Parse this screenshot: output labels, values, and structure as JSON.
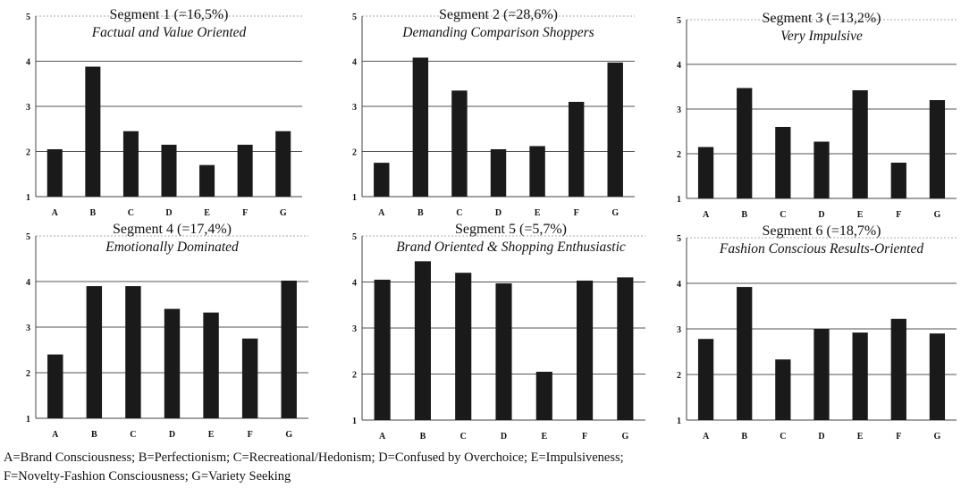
{
  "caption": {
    "line1": "A=Brand Consciousness; B=Perfectionism; C=Recreational/Hedonism; D=Confused by Overchoice; E=Impulsiveness;",
    "line2": "F=Novelty-Fashion Consciousness; G=Variety Seeking"
  },
  "colors": {
    "bar": "#1a1a1a",
    "grid": "#555555",
    "axis": "#444444",
    "text": "#111111"
  },
  "chart_data": [
    {
      "type": "bar",
      "title": "Segment 1 (=16,5%)",
      "subtitle": "Factual and Value Oriented",
      "categories": [
        "A",
        "B",
        "C",
        "D",
        "E",
        "F",
        "G"
      ],
      "values": [
        2.05,
        3.88,
        2.45,
        2.15,
        1.7,
        2.15,
        2.45
      ],
      "yticks": [
        1,
        2,
        3,
        4,
        5
      ],
      "ylim": [
        1,
        5
      ],
      "grid": true
    },
    {
      "type": "bar",
      "title": "Segment 2 (=28,6%)",
      "subtitle": "Demanding Comparison Shoppers",
      "categories": [
        "A",
        "B",
        "C",
        "D",
        "E",
        "F",
        "G"
      ],
      "values": [
        1.75,
        4.08,
        3.35,
        2.05,
        2.12,
        3.1,
        3.97
      ],
      "yticks": [
        1,
        2,
        3,
        4,
        5
      ],
      "ylim": [
        1,
        5
      ],
      "grid": true
    },
    {
      "type": "bar",
      "title": "Segment 3 (=13,2%)",
      "subtitle": "Very Impulsive",
      "categories": [
        "A",
        "B",
        "C",
        "D",
        "E",
        "F",
        "G"
      ],
      "values": [
        2.15,
        3.47,
        2.6,
        2.27,
        3.42,
        1.8,
        3.2
      ],
      "yticks": [
        1,
        2,
        3,
        4,
        5
      ],
      "ylim": [
        1,
        5
      ],
      "grid": true
    },
    {
      "type": "bar",
      "title": "Segment 4 (=17,4%)",
      "subtitle": "Emotionally Dominated",
      "categories": [
        "A",
        "B",
        "C",
        "D",
        "E",
        "F",
        "G"
      ],
      "values": [
        2.4,
        3.9,
        3.9,
        3.4,
        3.32,
        2.75,
        4.02
      ],
      "yticks": [
        1,
        2,
        3,
        4,
        5
      ],
      "ylim": [
        1,
        5
      ],
      "grid": true
    },
    {
      "type": "bar",
      "title": "Segment 5 (=5,7%)",
      "subtitle": "Brand Oriented & Shopping Enthusiastic",
      "categories": [
        "A",
        "B",
        "C",
        "D",
        "E",
        "F",
        "G"
      ],
      "values": [
        4.05,
        4.45,
        4.2,
        3.97,
        2.05,
        4.03,
        4.1
      ],
      "yticks": [
        1,
        2,
        3,
        4,
        5
      ],
      "ylim": [
        1,
        5
      ],
      "grid": true
    },
    {
      "type": "bar",
      "title": "Segment 6 (=18,7%)",
      "subtitle": "Fashion Conscious Results-Oriented",
      "categories": [
        "A",
        "B",
        "C",
        "D",
        "E",
        "F",
        "G"
      ],
      "values": [
        2.78,
        3.92,
        2.33,
        3.0,
        2.92,
        3.22,
        2.9
      ],
      "yticks": [
        1,
        2,
        3,
        4,
        5
      ],
      "ylim": [
        1,
        5
      ],
      "grid": true
    }
  ]
}
